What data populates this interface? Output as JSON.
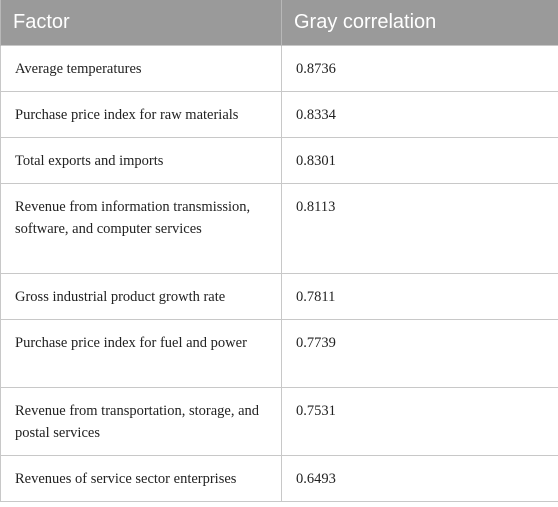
{
  "table": {
    "headers": [
      "Factor",
      "Gray correlation"
    ],
    "rows": [
      {
        "factor": "Average temperatures",
        "value": "0.8736"
      },
      {
        "factor": "Purchase price index for raw materials",
        "value": "0.8334"
      },
      {
        "factor": "Total exports and imports",
        "value": "0.8301"
      },
      {
        "factor": "Revenue from information transmission, software, and computer services",
        "value": "0.8113"
      },
      {
        "factor": "Gross industrial product growth rate",
        "value": "0.7811"
      },
      {
        "factor": "Purchase price index for fuel and power",
        "value": "0.7739"
      },
      {
        "factor": "Revenue from transportation, storage, and postal services",
        "value": "0.7531"
      },
      {
        "factor": "Revenues of service sector enterprises",
        "value": "0.6493"
      }
    ]
  }
}
